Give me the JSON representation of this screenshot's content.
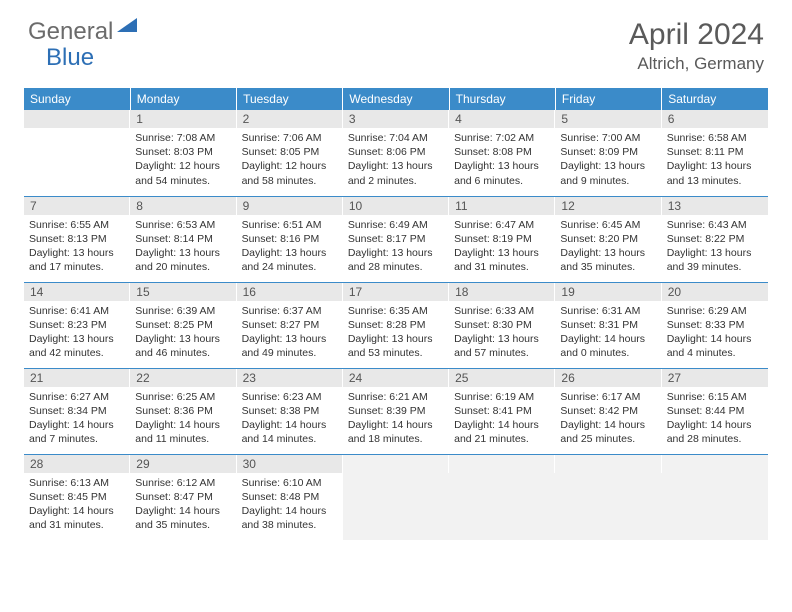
{
  "brand": {
    "general": "General",
    "blue": "Blue"
  },
  "title": "April 2024",
  "location": "Altrich, Germany",
  "colors": {
    "header_bg": "#3b8bc9",
    "header_text": "#ffffff",
    "daynum_bg": "#e8e8e8",
    "row_divider": "#3b8bc9",
    "logo_gray": "#6b6b6b",
    "logo_blue": "#2d6fb5",
    "title_color": "#5a5a5a"
  },
  "weekdays": [
    "Sunday",
    "Monday",
    "Tuesday",
    "Wednesday",
    "Thursday",
    "Friday",
    "Saturday"
  ],
  "weeks": [
    [
      {
        "n": "",
        "sr": "",
        "ss": "",
        "dl": ""
      },
      {
        "n": "1",
        "sr": "7:08 AM",
        "ss": "8:03 PM",
        "dl": "12 hours and 54 minutes."
      },
      {
        "n": "2",
        "sr": "7:06 AM",
        "ss": "8:05 PM",
        "dl": "12 hours and 58 minutes."
      },
      {
        "n": "3",
        "sr": "7:04 AM",
        "ss": "8:06 PM",
        "dl": "13 hours and 2 minutes."
      },
      {
        "n": "4",
        "sr": "7:02 AM",
        "ss": "8:08 PM",
        "dl": "13 hours and 6 minutes."
      },
      {
        "n": "5",
        "sr": "7:00 AM",
        "ss": "8:09 PM",
        "dl": "13 hours and 9 minutes."
      },
      {
        "n": "6",
        "sr": "6:58 AM",
        "ss": "8:11 PM",
        "dl": "13 hours and 13 minutes."
      }
    ],
    [
      {
        "n": "7",
        "sr": "6:55 AM",
        "ss": "8:13 PM",
        "dl": "13 hours and 17 minutes."
      },
      {
        "n": "8",
        "sr": "6:53 AM",
        "ss": "8:14 PM",
        "dl": "13 hours and 20 minutes."
      },
      {
        "n": "9",
        "sr": "6:51 AM",
        "ss": "8:16 PM",
        "dl": "13 hours and 24 minutes."
      },
      {
        "n": "10",
        "sr": "6:49 AM",
        "ss": "8:17 PM",
        "dl": "13 hours and 28 minutes."
      },
      {
        "n": "11",
        "sr": "6:47 AM",
        "ss": "8:19 PM",
        "dl": "13 hours and 31 minutes."
      },
      {
        "n": "12",
        "sr": "6:45 AM",
        "ss": "8:20 PM",
        "dl": "13 hours and 35 minutes."
      },
      {
        "n": "13",
        "sr": "6:43 AM",
        "ss": "8:22 PM",
        "dl": "13 hours and 39 minutes."
      }
    ],
    [
      {
        "n": "14",
        "sr": "6:41 AM",
        "ss": "8:23 PM",
        "dl": "13 hours and 42 minutes."
      },
      {
        "n": "15",
        "sr": "6:39 AM",
        "ss": "8:25 PM",
        "dl": "13 hours and 46 minutes."
      },
      {
        "n": "16",
        "sr": "6:37 AM",
        "ss": "8:27 PM",
        "dl": "13 hours and 49 minutes."
      },
      {
        "n": "17",
        "sr": "6:35 AM",
        "ss": "8:28 PM",
        "dl": "13 hours and 53 minutes."
      },
      {
        "n": "18",
        "sr": "6:33 AM",
        "ss": "8:30 PM",
        "dl": "13 hours and 57 minutes."
      },
      {
        "n": "19",
        "sr": "6:31 AM",
        "ss": "8:31 PM",
        "dl": "14 hours and 0 minutes."
      },
      {
        "n": "20",
        "sr": "6:29 AM",
        "ss": "8:33 PM",
        "dl": "14 hours and 4 minutes."
      }
    ],
    [
      {
        "n": "21",
        "sr": "6:27 AM",
        "ss": "8:34 PM",
        "dl": "14 hours and 7 minutes."
      },
      {
        "n": "22",
        "sr": "6:25 AM",
        "ss": "8:36 PM",
        "dl": "14 hours and 11 minutes."
      },
      {
        "n": "23",
        "sr": "6:23 AM",
        "ss": "8:38 PM",
        "dl": "14 hours and 14 minutes."
      },
      {
        "n": "24",
        "sr": "6:21 AM",
        "ss": "8:39 PM",
        "dl": "14 hours and 18 minutes."
      },
      {
        "n": "25",
        "sr": "6:19 AM",
        "ss": "8:41 PM",
        "dl": "14 hours and 21 minutes."
      },
      {
        "n": "26",
        "sr": "6:17 AM",
        "ss": "8:42 PM",
        "dl": "14 hours and 25 minutes."
      },
      {
        "n": "27",
        "sr": "6:15 AM",
        "ss": "8:44 PM",
        "dl": "14 hours and 28 minutes."
      }
    ],
    [
      {
        "n": "28",
        "sr": "6:13 AM",
        "ss": "8:45 PM",
        "dl": "14 hours and 31 minutes."
      },
      {
        "n": "29",
        "sr": "6:12 AM",
        "ss": "8:47 PM",
        "dl": "14 hours and 35 minutes."
      },
      {
        "n": "30",
        "sr": "6:10 AM",
        "ss": "8:48 PM",
        "dl": "14 hours and 38 minutes."
      },
      {
        "n": "",
        "sr": "",
        "ss": "",
        "dl": "",
        "trailing": true
      },
      {
        "n": "",
        "sr": "",
        "ss": "",
        "dl": "",
        "trailing": true
      },
      {
        "n": "",
        "sr": "",
        "ss": "",
        "dl": "",
        "trailing": true
      },
      {
        "n": "",
        "sr": "",
        "ss": "",
        "dl": "",
        "trailing": true
      }
    ]
  ],
  "labels": {
    "sunrise": "Sunrise: ",
    "sunset": "Sunset: ",
    "daylight": "Daylight: "
  }
}
